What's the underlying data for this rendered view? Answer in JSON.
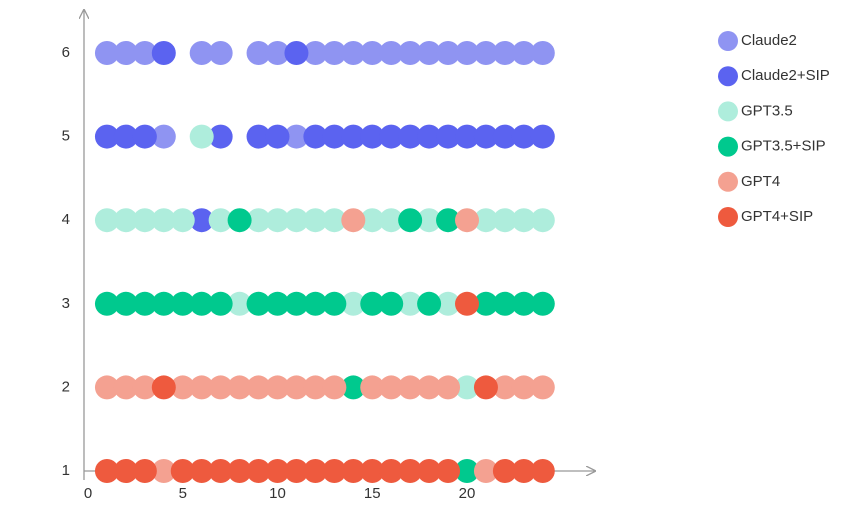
{
  "chart_data": {
    "type": "scatter",
    "xlim": [
      0,
      26.8
    ],
    "ylim": [
      1,
      6.5
    ],
    "xticks": [
      0,
      5,
      10,
      15,
      20
    ],
    "yticks": [
      1,
      2,
      3,
      4,
      5,
      6
    ],
    "legend": "top-right",
    "series": [
      {
        "name": "Claude2",
        "color": "#8f94f2",
        "x": [
          1,
          2,
          3,
          6,
          7,
          9,
          10,
          12,
          13,
          14,
          15,
          16,
          17,
          18,
          19,
          20,
          21,
          22,
          23,
          24,
          4,
          11
        ],
        "y": [
          6,
          6,
          6,
          6,
          6,
          6,
          6,
          6,
          6,
          6,
          6,
          6,
          6,
          6,
          6,
          6,
          6,
          6,
          6,
          6,
          5,
          5
        ]
      },
      {
        "name": "Claude2+SIP",
        "color": "#5b63f0",
        "x": [
          4,
          11,
          1,
          2,
          3,
          7,
          9,
          10,
          12,
          13,
          14,
          15,
          16,
          17,
          18,
          19,
          20,
          21,
          22,
          23,
          24,
          6
        ],
        "y": [
          6,
          6,
          5,
          5,
          5,
          5,
          5,
          5,
          5,
          5,
          5,
          5,
          5,
          5,
          5,
          5,
          5,
          5,
          5,
          5,
          5,
          4
        ]
      },
      {
        "name": "GPT3.5",
        "color": "#aeeddc",
        "x": [
          6,
          1,
          2,
          3,
          4,
          5,
          7,
          9,
          10,
          11,
          12,
          13,
          15,
          16,
          18,
          21,
          22,
          23,
          24,
          8,
          14,
          17,
          19,
          20
        ],
        "y": [
          5,
          4,
          4,
          4,
          4,
          4,
          4,
          4,
          4,
          4,
          4,
          4,
          4,
          4,
          4,
          4,
          4,
          4,
          4,
          3,
          3,
          3,
          3,
          2
        ]
      },
      {
        "name": "GPT3.5+SIP",
        "color": "#00c98e",
        "x": [
          8,
          17,
          19,
          1,
          2,
          3,
          4,
          5,
          6,
          7,
          9,
          10,
          11,
          12,
          13,
          15,
          16,
          18,
          21,
          22,
          23,
          24,
          14,
          20
        ],
        "y": [
          4,
          4,
          4,
          3,
          3,
          3,
          3,
          3,
          3,
          3,
          3,
          3,
          3,
          3,
          3,
          3,
          3,
          3,
          3,
          3,
          3,
          3,
          2,
          1
        ]
      },
      {
        "name": "GPT4",
        "color": "#f4a191",
        "x": [
          14,
          20,
          1,
          2,
          3,
          5,
          6,
          7,
          8,
          9,
          10,
          11,
          12,
          13,
          15,
          16,
          17,
          18,
          19,
          22,
          23,
          24,
          4,
          21
        ],
        "y": [
          4,
          4,
          2,
          2,
          2,
          2,
          2,
          2,
          2,
          2,
          2,
          2,
          2,
          2,
          2,
          2,
          2,
          2,
          2,
          2,
          2,
          2,
          1,
          1
        ]
      },
      {
        "name": "GPT4+SIP",
        "color": "#ee5a3e",
        "x": [
          20,
          4,
          21,
          1,
          2,
          3,
          5,
          6,
          7,
          8,
          9,
          10,
          11,
          12,
          13,
          14,
          15,
          16,
          17,
          18,
          19,
          22,
          23,
          24
        ],
        "y": [
          3,
          2,
          2,
          1,
          1,
          1,
          1,
          1,
          1,
          1,
          1,
          1,
          1,
          1,
          1,
          1,
          1,
          1,
          1,
          1,
          1,
          1,
          1,
          1
        ]
      }
    ]
  }
}
